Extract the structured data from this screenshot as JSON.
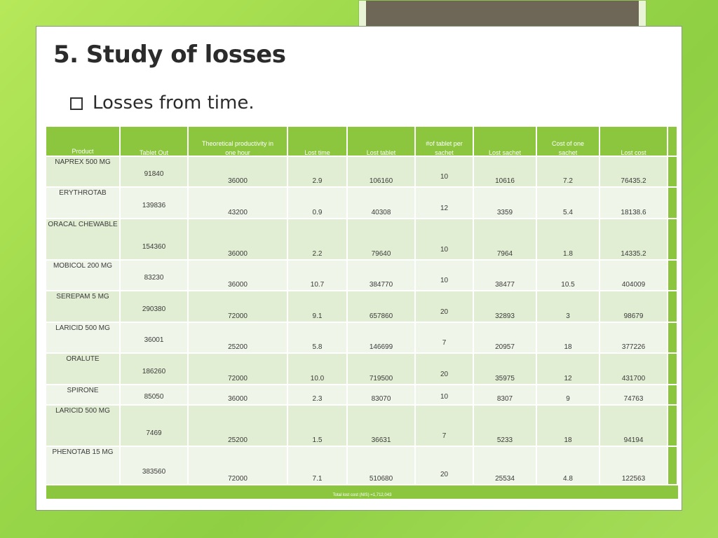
{
  "slide": {
    "title": "5. Study of losses",
    "bullet": "Losses from time."
  },
  "table": {
    "headers": {
      "product": "Product",
      "tablet_out": "Tablet Out",
      "theoretical_line1": "Theoretical productivity in",
      "theoretical_line2": "one hour",
      "lost_time": "Lost time",
      "lost_tablet": "Lost tablet",
      "per_sachet_line1": "#of tablet per",
      "per_sachet_line2": "sachet",
      "lost_sachet": "Lost sachet",
      "cost_line1": "Cost of one",
      "cost_line2": "sachet",
      "lost_cost": "Lost cost"
    },
    "rows": [
      {
        "product": "NAPREX 500 MG",
        "tablet_out": "91840",
        "theoretical": "36000",
        "lost_time": "2.9",
        "lost_tablet": "106160",
        "per_sachet": "10",
        "lost_sachet": "10616",
        "cost": "7.2",
        "lost_cost": "76435.2"
      },
      {
        "product": "ERYTHROTAB",
        "tablet_out": "139836",
        "theoretical": "43200",
        "lost_time": "0.9",
        "lost_tablet": "40308",
        "per_sachet": "12",
        "lost_sachet": "3359",
        "cost": "5.4",
        "lost_cost": "18138.6"
      },
      {
        "product": "ORACAL CHEWABLE",
        "tablet_out": "154360",
        "theoretical": "36000",
        "lost_time": "2.2",
        "lost_tablet": "79640",
        "per_sachet": "10",
        "lost_sachet": "7964",
        "cost": "1.8",
        "lost_cost": "14335.2"
      },
      {
        "product": "MOBICOL 200 MG",
        "tablet_out": "83230",
        "theoretical": "36000",
        "lost_time": "10.7",
        "lost_tablet": "384770",
        "per_sachet": "10",
        "lost_sachet": "38477",
        "cost": "10.5",
        "lost_cost": "404009"
      },
      {
        "product": "SEREPAM  5 MG",
        "tablet_out": "290380",
        "theoretical": "72000",
        "lost_time": "9.1",
        "lost_tablet": "657860",
        "per_sachet": "20",
        "lost_sachet": "32893",
        "cost": "3",
        "lost_cost": "98679"
      },
      {
        "product": "LARICID 500 MG",
        "tablet_out": "36001",
        "theoretical": "25200",
        "lost_time": "5.8",
        "lost_tablet": "146699",
        "per_sachet": "7",
        "lost_sachet": "20957",
        "cost": "18",
        "lost_cost": "377226"
      },
      {
        "product": "ORALUTE",
        "tablet_out": "186260",
        "theoretical": "72000",
        "lost_time": "10.0",
        "lost_tablet": "719500",
        "per_sachet": "20",
        "lost_sachet": "35975",
        "cost": "12",
        "lost_cost": "431700"
      },
      {
        "product": "SPIRONE",
        "tablet_out": "85050",
        "theoretical": "36000",
        "lost_time": "2.3",
        "lost_tablet": "83070",
        "per_sachet": "10",
        "lost_sachet": "8307",
        "cost": "9",
        "lost_cost": "74763"
      },
      {
        "product": "LARICID 500 MG",
        "tablet_out": "7469",
        "theoretical": "25200",
        "lost_time": "1.5",
        "lost_tablet": "36631",
        "per_sachet": "7",
        "lost_sachet": "5233",
        "cost": "18",
        "lost_cost": "94194"
      },
      {
        "product": "PHENOTAB 15 MG",
        "tablet_out": "383560",
        "theoretical": "72000",
        "lost_time": "7.1",
        "lost_tablet": "510680",
        "per_sachet": "20",
        "lost_sachet": "25534",
        "cost": "4.8",
        "lost_cost": "122563"
      }
    ],
    "footer": "Total lost cost (NIS) =1,712,043"
  },
  "colors": {
    "header_green": "#8cc63f",
    "row_odd": "#e2eed3",
    "row_even": "#eff5e8",
    "background_green": "#9bd84a"
  }
}
